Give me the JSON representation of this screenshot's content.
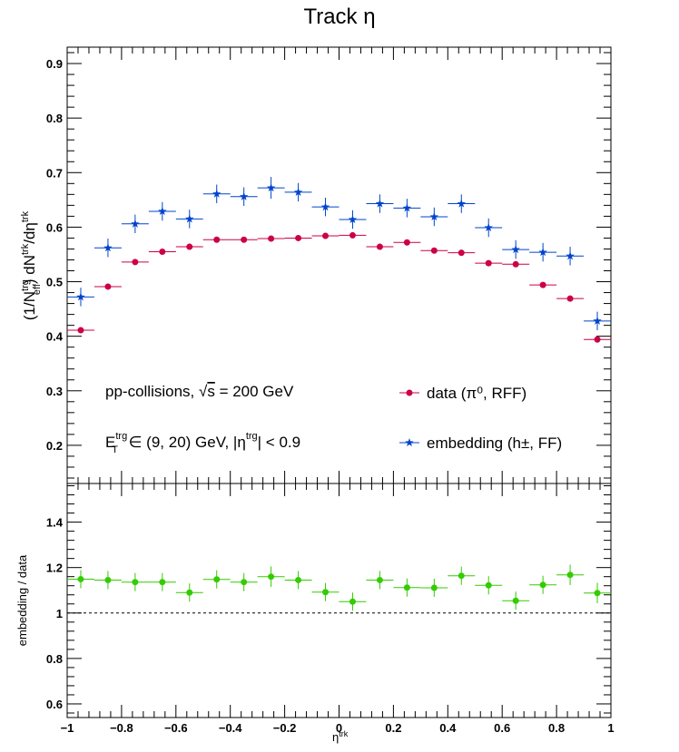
{
  "title": "Track η",
  "chart_data": [
    {
      "type": "scatter",
      "panel": "top",
      "ylabel": "(1/N_eff^trg) dN^trk/dη^trk",
      "xlim": [
        -1,
        1
      ],
      "ylim": [
        0.13,
        0.93
      ],
      "yticks": [
        0.2,
        0.3,
        0.4,
        0.5,
        0.6,
        0.7,
        0.8,
        0.9
      ],
      "ytick_labels": [
        "0.2",
        "0.3",
        "0.4",
        "0.5",
        "0.6",
        "0.7",
        "0.8",
        "0.9"
      ],
      "x": [
        -0.95,
        -0.85,
        -0.75,
        -0.65,
        -0.55,
        -0.45,
        -0.35,
        -0.25,
        -0.15,
        -0.05,
        0.05,
        0.15,
        0.25,
        0.35,
        0.45,
        0.55,
        0.65,
        0.75,
        0.85,
        0.95
      ],
      "series": [
        {
          "name": "data (π⁰, RFF)",
          "color": "#cc0044",
          "marker": "circle",
          "values": [
            0.411,
            0.491,
            0.536,
            0.555,
            0.564,
            0.577,
            0.577,
            0.579,
            0.58,
            0.584,
            0.585,
            0.564,
            0.572,
            0.557,
            0.553,
            0.534,
            0.532,
            0.494,
            0.469,
            0.394
          ],
          "errors": [
            0.004,
            0.004,
            0.004,
            0.004,
            0.004,
            0.004,
            0.004,
            0.004,
            0.004,
            0.004,
            0.004,
            0.004,
            0.004,
            0.004,
            0.004,
            0.004,
            0.004,
            0.004,
            0.004,
            0.004
          ]
        },
        {
          "name": "embedding (h±, FF)",
          "color": "#0044cc",
          "marker": "star",
          "values": [
            0.472,
            0.562,
            0.606,
            0.629,
            0.615,
            0.661,
            0.656,
            0.672,
            0.664,
            0.637,
            0.614,
            0.643,
            0.635,
            0.619,
            0.643,
            0.599,
            0.559,
            0.554,
            0.547,
            0.428
          ],
          "errors": [
            0.017,
            0.017,
            0.017,
            0.017,
            0.017,
            0.017,
            0.017,
            0.02,
            0.017,
            0.017,
            0.017,
            0.017,
            0.017,
            0.017,
            0.017,
            0.017,
            0.017,
            0.017,
            0.017,
            0.017
          ]
        }
      ],
      "annotations": [
        {
          "id": "collision",
          "parts": [
            "pp-collisions, ",
            "√",
            "s",
            " = 200 GeV"
          ]
        },
        {
          "id": "cuts",
          "parts": [
            "E",
            "trg",
            "T",
            " ∈ (9, 20) GeV, |η",
            "trg",
            "| < 0.9"
          ]
        }
      ]
    },
    {
      "type": "scatter",
      "panel": "bottom",
      "ylabel": "embedding / data",
      "xlabel": "η^trk",
      "xlim": [
        -1,
        1
      ],
      "ylim": [
        0.54,
        1.57
      ],
      "xticks": [
        -1,
        -0.8,
        -0.6,
        -0.4,
        -0.2,
        0,
        0.2,
        0.4,
        0.6,
        0.8,
        1
      ],
      "xtick_labels": [
        "−1",
        "−0.8",
        "−0.6",
        "−0.4",
        "−0.2",
        "0",
        "0.2",
        "0.4",
        "0.6",
        "0.8",
        "1"
      ],
      "yticks": [
        0.6,
        0.8,
        1.0,
        1.2,
        1.4
      ],
      "ytick_labels": [
        "0.6",
        "0.8",
        "1",
        "1.2",
        "1.4"
      ],
      "reference_line": 1.0,
      "x": [
        -0.95,
        -0.85,
        -0.75,
        -0.65,
        -0.55,
        -0.45,
        -0.35,
        -0.25,
        -0.15,
        -0.05,
        0.05,
        0.15,
        0.25,
        0.35,
        0.45,
        0.55,
        0.65,
        0.75,
        0.85,
        0.95
      ],
      "series": [
        {
          "name": "embedding / data",
          "color": "#33cc00",
          "marker": "circle",
          "values": [
            1.149,
            1.145,
            1.136,
            1.136,
            1.09,
            1.148,
            1.136,
            1.16,
            1.145,
            1.092,
            1.05,
            1.145,
            1.112,
            1.111,
            1.164,
            1.122,
            1.054,
            1.124,
            1.168,
            1.088
          ],
          "errors": [
            0.04,
            0.04,
            0.04,
            0.04,
            0.04,
            0.04,
            0.04,
            0.045,
            0.04,
            0.04,
            0.04,
            0.04,
            0.04,
            0.04,
            0.04,
            0.04,
            0.04,
            0.04,
            0.045,
            0.045
          ]
        }
      ]
    }
  ]
}
